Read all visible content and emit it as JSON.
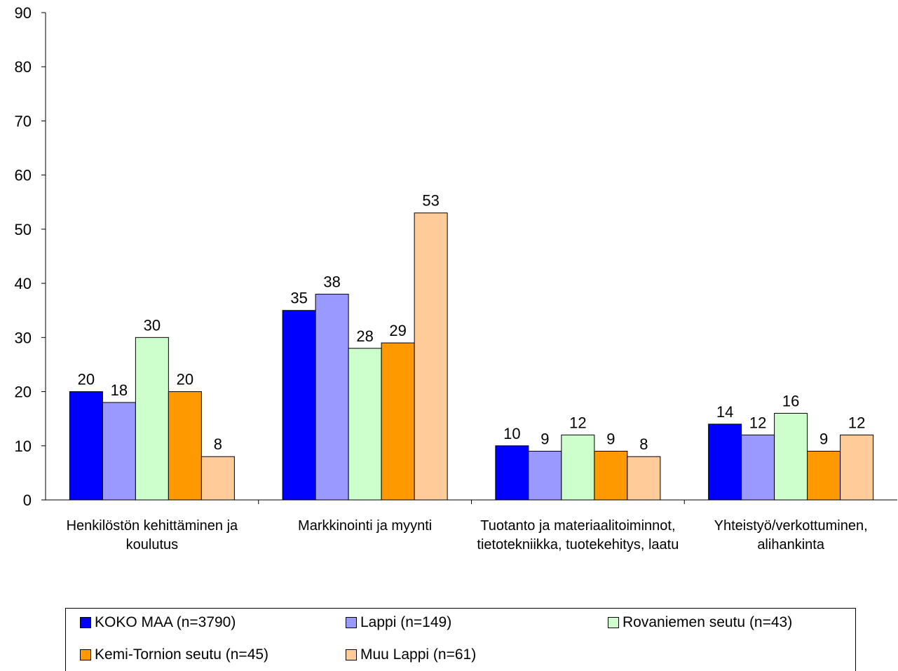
{
  "chart_data": {
    "type": "bar",
    "categories": [
      "Henkilöstön kehittäminen ja koulutus",
      "Markkinointi ja myynti",
      "Tuotanto ja materiaalitoiminnot, tietotekniikka, tuotekehitys, laatu",
      "Yhteistyö/verkottuminen, alihankinta"
    ],
    "series": [
      {
        "name": "KOKO MAA (n=3790)",
        "color": "#0000ff",
        "values": [
          20,
          35,
          10,
          14
        ]
      },
      {
        "name": "Lappi (n=149)",
        "color": "#9999ff",
        "values": [
          18,
          38,
          9,
          12
        ]
      },
      {
        "name": "Rovaniemen seutu (n=43)",
        "color": "#ccffcc",
        "values": [
          30,
          28,
          12,
          16
        ]
      },
      {
        "name": "Kemi-Tornion seutu (n=45)",
        "color": "#ff9900",
        "values": [
          20,
          29,
          9,
          9
        ]
      },
      {
        "name": "Muu Lappi (n=61)",
        "color": "#ffcc99",
        "values": [
          8,
          53,
          8,
          12
        ]
      }
    ],
    "ylim": [
      0,
      90
    ],
    "yticks": [
      0,
      10,
      20,
      30,
      40,
      50,
      60,
      70,
      80,
      90
    ],
    "grid": false
  }
}
